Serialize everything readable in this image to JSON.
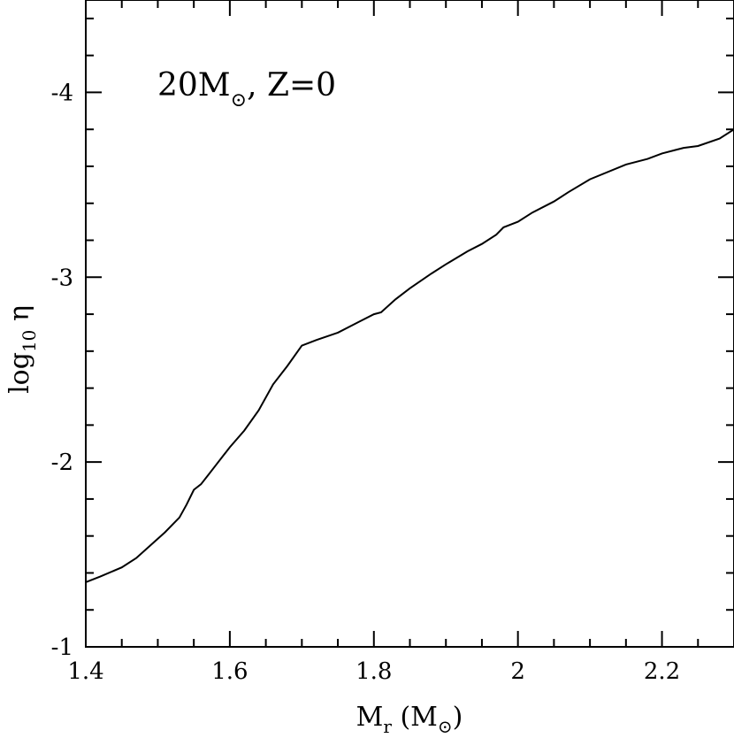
{
  "chart_data": {
    "type": "line",
    "title": "",
    "annotation": {
      "main": "20M",
      "sub": "⊙",
      "rest": ", Z=0"
    },
    "xlabel": {
      "main": "M",
      "sub": "r",
      "paren_open": " (M",
      "paren_sub": "⊙",
      "paren_close": ")"
    },
    "ylabel": {
      "main": "log",
      "sub": "10",
      "symbol": " η"
    },
    "xlim": [
      1.4,
      2.3
    ],
    "ylim": [
      -1,
      -4.5
    ],
    "x_tick_values": [
      1.4,
      1.6,
      1.8,
      2.0,
      2.2
    ],
    "x_tick_labels": [
      "1.4",
      "1.6",
      "1.8",
      "2",
      "2.2"
    ],
    "y_tick_values": [
      -1,
      -2,
      -3,
      -4
    ],
    "y_tick_labels": [
      "-1",
      "-2",
      "-3",
      "-4"
    ],
    "x_minor_step": 0.05,
    "y_minor_step": 0.2,
    "grid": false,
    "series": [
      {
        "x": [
          1.4,
          1.42,
          1.45,
          1.47,
          1.49,
          1.51,
          1.53,
          1.54,
          1.55,
          1.56,
          1.57,
          1.58,
          1.59,
          1.6,
          1.62,
          1.64,
          1.66,
          1.68,
          1.7,
          1.72,
          1.75,
          1.78,
          1.8,
          1.81,
          1.83,
          1.85,
          1.88,
          1.9,
          1.93,
          1.95,
          1.97,
          1.98,
          2.0,
          2.02,
          2.05,
          2.07,
          2.1,
          2.15,
          2.18,
          2.2,
          2.23,
          2.25,
          2.28,
          2.3
        ],
        "y": [
          -1.35,
          -1.38,
          -1.43,
          -1.48,
          -1.55,
          -1.62,
          -1.7,
          -1.77,
          -1.85,
          -1.88,
          -1.93,
          -1.98,
          -2.03,
          -2.08,
          -2.17,
          -2.28,
          -2.42,
          -2.52,
          -2.63,
          -2.66,
          -2.7,
          -2.76,
          -2.8,
          -2.81,
          -2.88,
          -2.94,
          -3.02,
          -3.07,
          -3.14,
          -3.18,
          -3.23,
          -3.27,
          -3.3,
          -3.35,
          -3.41,
          -3.46,
          -3.53,
          -3.61,
          -3.64,
          -3.67,
          -3.7,
          -3.71,
          -3.75,
          -3.8
        ]
      }
    ]
  }
}
